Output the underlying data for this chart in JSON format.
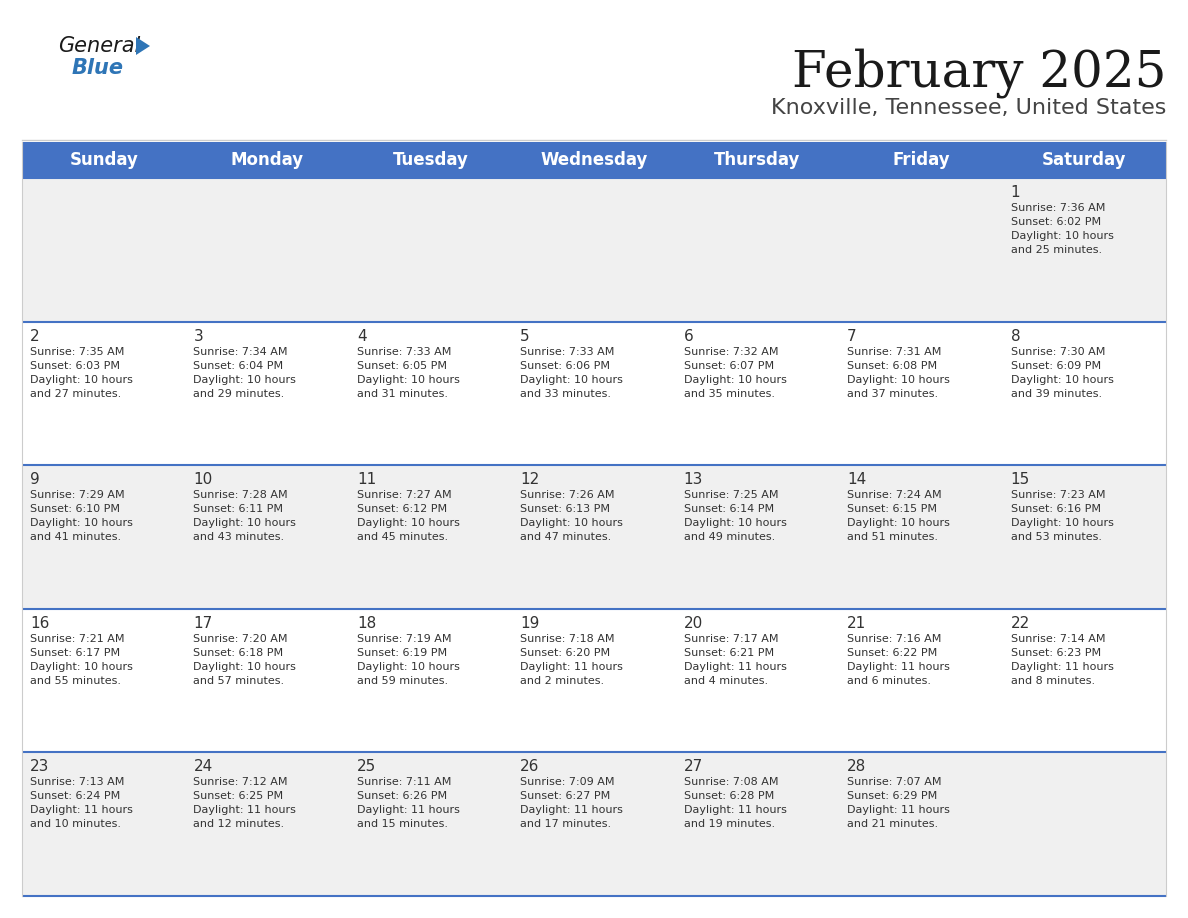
{
  "title": "February 2025",
  "subtitle": "Knoxville, Tennessee, United States",
  "header_bg": "#4472C4",
  "header_text": "#FFFFFF",
  "day_names": [
    "Sunday",
    "Monday",
    "Tuesday",
    "Wednesday",
    "Thursday",
    "Friday",
    "Saturday"
  ],
  "row_bg_even": "#F0F0F0",
  "row_bg_odd": "#FFFFFF",
  "cell_border": "#4472C4",
  "number_color": "#333333",
  "text_color": "#333333",
  "weeks": [
    [
      {
        "day": null,
        "info": null
      },
      {
        "day": null,
        "info": null
      },
      {
        "day": null,
        "info": null
      },
      {
        "day": null,
        "info": null
      },
      {
        "day": null,
        "info": null
      },
      {
        "day": null,
        "info": null
      },
      {
        "day": 1,
        "info": "Sunrise: 7:36 AM\nSunset: 6:02 PM\nDaylight: 10 hours\nand 25 minutes."
      }
    ],
    [
      {
        "day": 2,
        "info": "Sunrise: 7:35 AM\nSunset: 6:03 PM\nDaylight: 10 hours\nand 27 minutes."
      },
      {
        "day": 3,
        "info": "Sunrise: 7:34 AM\nSunset: 6:04 PM\nDaylight: 10 hours\nand 29 minutes."
      },
      {
        "day": 4,
        "info": "Sunrise: 7:33 AM\nSunset: 6:05 PM\nDaylight: 10 hours\nand 31 minutes."
      },
      {
        "day": 5,
        "info": "Sunrise: 7:33 AM\nSunset: 6:06 PM\nDaylight: 10 hours\nand 33 minutes."
      },
      {
        "day": 6,
        "info": "Sunrise: 7:32 AM\nSunset: 6:07 PM\nDaylight: 10 hours\nand 35 minutes."
      },
      {
        "day": 7,
        "info": "Sunrise: 7:31 AM\nSunset: 6:08 PM\nDaylight: 10 hours\nand 37 minutes."
      },
      {
        "day": 8,
        "info": "Sunrise: 7:30 AM\nSunset: 6:09 PM\nDaylight: 10 hours\nand 39 minutes."
      }
    ],
    [
      {
        "day": 9,
        "info": "Sunrise: 7:29 AM\nSunset: 6:10 PM\nDaylight: 10 hours\nand 41 minutes."
      },
      {
        "day": 10,
        "info": "Sunrise: 7:28 AM\nSunset: 6:11 PM\nDaylight: 10 hours\nand 43 minutes."
      },
      {
        "day": 11,
        "info": "Sunrise: 7:27 AM\nSunset: 6:12 PM\nDaylight: 10 hours\nand 45 minutes."
      },
      {
        "day": 12,
        "info": "Sunrise: 7:26 AM\nSunset: 6:13 PM\nDaylight: 10 hours\nand 47 minutes."
      },
      {
        "day": 13,
        "info": "Sunrise: 7:25 AM\nSunset: 6:14 PM\nDaylight: 10 hours\nand 49 minutes."
      },
      {
        "day": 14,
        "info": "Sunrise: 7:24 AM\nSunset: 6:15 PM\nDaylight: 10 hours\nand 51 minutes."
      },
      {
        "day": 15,
        "info": "Sunrise: 7:23 AM\nSunset: 6:16 PM\nDaylight: 10 hours\nand 53 minutes."
      }
    ],
    [
      {
        "day": 16,
        "info": "Sunrise: 7:21 AM\nSunset: 6:17 PM\nDaylight: 10 hours\nand 55 minutes."
      },
      {
        "day": 17,
        "info": "Sunrise: 7:20 AM\nSunset: 6:18 PM\nDaylight: 10 hours\nand 57 minutes."
      },
      {
        "day": 18,
        "info": "Sunrise: 7:19 AM\nSunset: 6:19 PM\nDaylight: 10 hours\nand 59 minutes."
      },
      {
        "day": 19,
        "info": "Sunrise: 7:18 AM\nSunset: 6:20 PM\nDaylight: 11 hours\nand 2 minutes."
      },
      {
        "day": 20,
        "info": "Sunrise: 7:17 AM\nSunset: 6:21 PM\nDaylight: 11 hours\nand 4 minutes."
      },
      {
        "day": 21,
        "info": "Sunrise: 7:16 AM\nSunset: 6:22 PM\nDaylight: 11 hours\nand 6 minutes."
      },
      {
        "day": 22,
        "info": "Sunrise: 7:14 AM\nSunset: 6:23 PM\nDaylight: 11 hours\nand 8 minutes."
      }
    ],
    [
      {
        "day": 23,
        "info": "Sunrise: 7:13 AM\nSunset: 6:24 PM\nDaylight: 11 hours\nand 10 minutes."
      },
      {
        "day": 24,
        "info": "Sunrise: 7:12 AM\nSunset: 6:25 PM\nDaylight: 11 hours\nand 12 minutes."
      },
      {
        "day": 25,
        "info": "Sunrise: 7:11 AM\nSunset: 6:26 PM\nDaylight: 11 hours\nand 15 minutes."
      },
      {
        "day": 26,
        "info": "Sunrise: 7:09 AM\nSunset: 6:27 PM\nDaylight: 11 hours\nand 17 minutes."
      },
      {
        "day": 27,
        "info": "Sunrise: 7:08 AM\nSunset: 6:28 PM\nDaylight: 11 hours\nand 19 minutes."
      },
      {
        "day": 28,
        "info": "Sunrise: 7:07 AM\nSunset: 6:29 PM\nDaylight: 11 hours\nand 21 minutes."
      },
      {
        "day": null,
        "info": null
      }
    ]
  ],
  "logo_text_general": "General",
  "logo_text_blue": "Blue",
  "logo_color_general": "#1a1a1a",
  "logo_color_blue": "#2E75B6",
  "logo_triangle_color": "#2E75B6",
  "title_fontsize": 36,
  "subtitle_fontsize": 16,
  "header_fontsize": 12,
  "day_number_fontsize": 11,
  "info_fontsize": 8
}
